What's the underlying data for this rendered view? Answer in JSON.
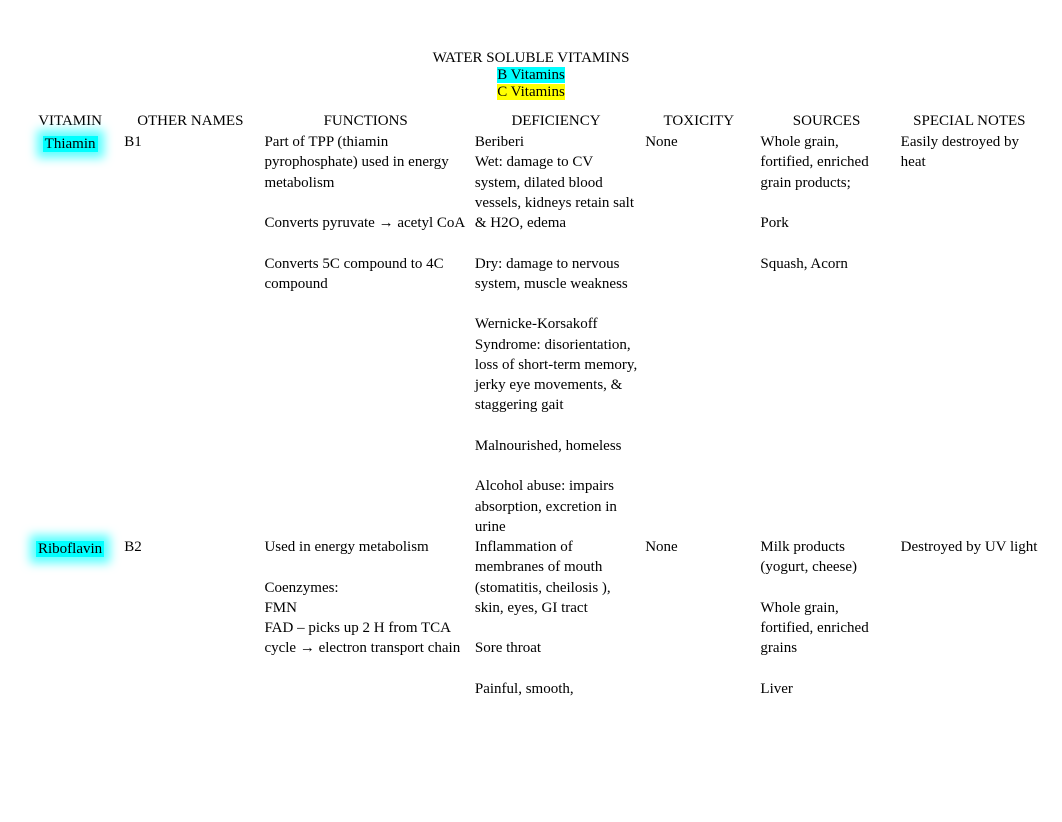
{
  "header": {
    "title": "WATER SOLUBLE VITAMINS",
    "sub1": "B Vitamins",
    "sub2": "C Vitamins"
  },
  "columns": {
    "vitamin": "VITAMIN",
    "other": "OTHER NAMES",
    "functions": "FUNCTIONS",
    "deficiency": "DEFICIENCY",
    "toxicity": "TOXICITY",
    "sources": "SOURCES",
    "notes": "SPECIAL NOTES"
  },
  "rows": [
    {
      "vitamin": "Thiamin",
      "other": "B1",
      "functions": "Part of TPP (thiamin pyrophosphate) used in energy metabolism\n\nConverts pyruvate → acetyl CoA\n\nConverts 5C compound to 4C compound",
      "deficiency": "Beriberi\nWet: damage to CV system, dilated blood vessels, kidneys retain salt & H2O, edema\n\nDry: damage to nervous system, muscle weakness\n\nWernicke-Korsakoff Syndrome: disorientation, loss of short-term memory, jerky eye movements, & staggering gait\n\nMalnourished, homeless\n\nAlcohol abuse: impairs absorption, excretion in urine",
      "toxicity": "None",
      "sources": "Whole grain, fortified, enriched grain products;\n\nPork\n\nSquash, Acorn",
      "notes": "Easily destroyed by heat"
    },
    {
      "vitamin": "Riboflavin",
      "other": "B2",
      "functions": "Used in energy metabolism\n\nCoenzymes:\nFMN\nFAD – picks up 2 H from TCA cycle → electron transport chain",
      "deficiency": "Inflammation of membranes of mouth (stomatitis, cheilosis ), skin, eyes, GI tract\n\nSore throat\n\nPainful, smooth,",
      "toxicity": "None",
      "sources": "Milk products (yogurt, cheese)\n\nWhole grain, fortified, enriched grains\n\nLiver",
      "notes": "Destroyed by UV light"
    }
  ],
  "styling": {
    "highlight_cyan": "#00ffff",
    "highlight_yellow": "#ffff00",
    "background": "#ffffff",
    "font_family": "Times New Roman",
    "font_size": 15
  }
}
